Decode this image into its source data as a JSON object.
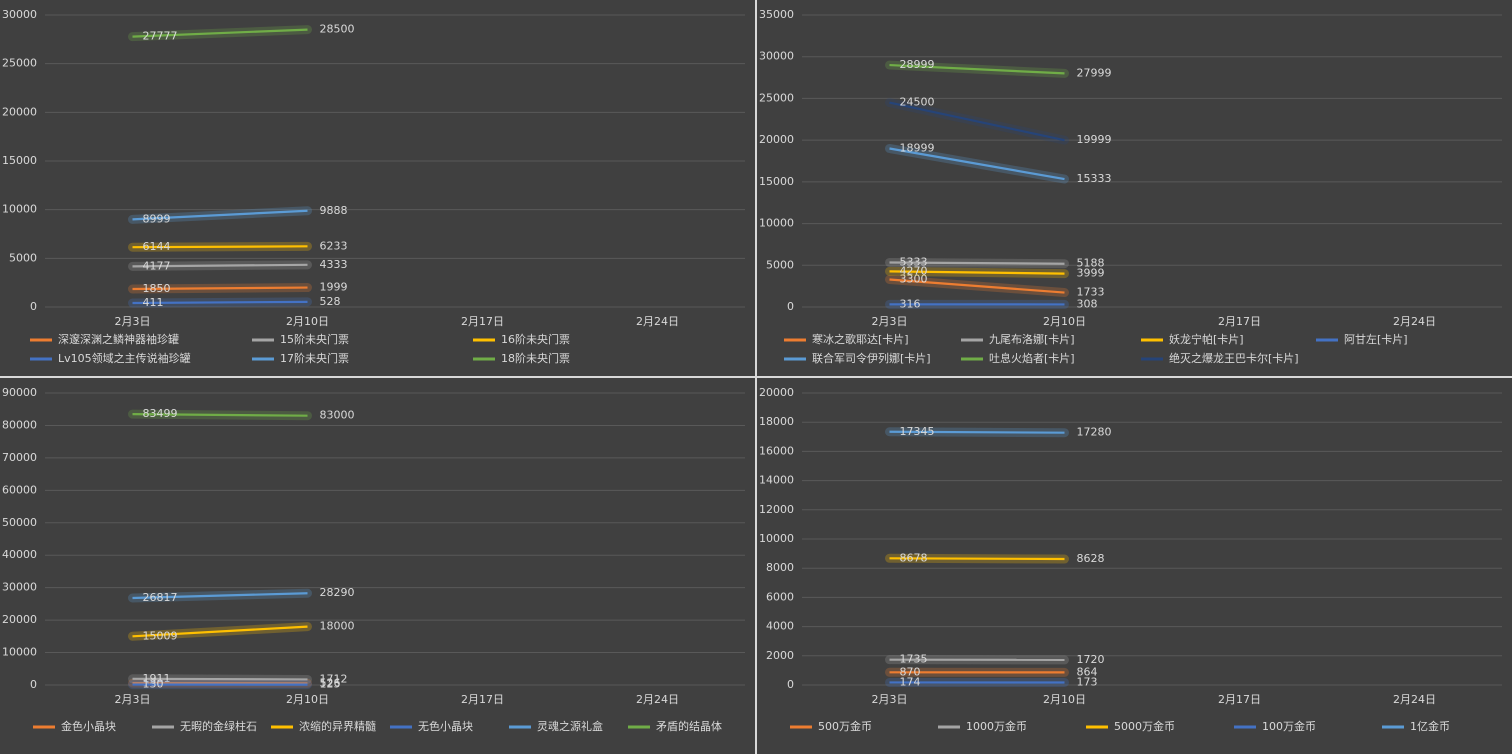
{
  "chart_data": [
    {
      "type": "line",
      "categories": [
        "2月3日",
        "2月10日",
        "2月17日",
        "2月24日"
      ],
      "ylim": [
        0,
        30000
      ],
      "yticks": [
        0,
        5000,
        10000,
        15000,
        20000,
        25000,
        30000
      ],
      "grid": true,
      "series": [
        {
          "name": "深邃深渊之鳞神器袖珍罐",
          "color": "#ed7d31",
          "values": [
            1850,
            1999,
            null,
            null
          ]
        },
        {
          "name": "15阶未央门票",
          "color": "#a5a5a5",
          "values": [
            4177,
            4333,
            null,
            null
          ]
        },
        {
          "name": "16阶未央门票",
          "color": "#ffc000",
          "values": [
            6144,
            6233,
            null,
            null
          ]
        },
        {
          "name": "Lv105领域之主传说袖珍罐",
          "color": "#4472c4",
          "values": [
            411,
            528,
            null,
            null
          ]
        },
        {
          "name": "17阶未央门票",
          "color": "#5b9bd5",
          "values": [
            8999,
            9888,
            null,
            null
          ]
        },
        {
          "name": "18阶未央门票",
          "color": "#70ad47",
          "values": [
            27777,
            28500,
            null,
            null
          ]
        }
      ]
    },
    {
      "type": "line",
      "categories": [
        "2月3日",
        "2月10日",
        "2月17日",
        "2月24日"
      ],
      "ylim": [
        0,
        35000
      ],
      "yticks": [
        0,
        5000,
        10000,
        15000,
        20000,
        25000,
        30000,
        35000
      ],
      "grid": true,
      "series": [
        {
          "name": "寒冰之歌耶达[卡片]",
          "color": "#ed7d31",
          "values": [
            3300,
            1733,
            null,
            null
          ]
        },
        {
          "name": "九尾布洛娜[卡片]",
          "color": "#a5a5a5",
          "values": [
            5333,
            5188,
            null,
            null
          ]
        },
        {
          "name": "妖龙宁帕[卡片]",
          "color": "#ffc000",
          "values": [
            4270,
            3999,
            null,
            null
          ]
        },
        {
          "name": "阿甘左[卡片]",
          "color": "#4472c4",
          "values": [
            316,
            308,
            null,
            null
          ]
        },
        {
          "name": "联合军司令伊列娜[卡片]",
          "color": "#5b9bd5",
          "values": [
            18999,
            15333,
            null,
            null
          ]
        },
        {
          "name": "吐息火焰者[卡片]",
          "color": "#70ad47",
          "values": [
            28999,
            27999,
            null,
            null
          ]
        },
        {
          "name": "绝灭之爆龙王巴卡尔[卡片]",
          "color": "#264478",
          "values": [
            24500,
            19999,
            null,
            null
          ]
        }
      ]
    },
    {
      "type": "line",
      "categories": [
        "2月3日",
        "2月10日",
        "2月17日",
        "2月24日"
      ],
      "ylim": [
        0,
        90000
      ],
      "yticks": [
        0,
        10000,
        20000,
        30000,
        40000,
        50000,
        60000,
        70000,
        80000,
        90000
      ],
      "grid": true,
      "series": [
        {
          "name": "金色小晶块",
          "color": "#ed7d31",
          "values": [
            580,
            526,
            null,
            null
          ]
        },
        {
          "name": "无暇的金绿柱石",
          "color": "#a5a5a5",
          "values": [
            1911,
            1712,
            null,
            null
          ]
        },
        {
          "name": "浓缩的异界精髓",
          "color": "#ffc000",
          "values": [
            15009,
            18000,
            null,
            null
          ]
        },
        {
          "name": "无色小晶块",
          "color": "#4472c4",
          "values": [
            130,
            125,
            null,
            null
          ]
        },
        {
          "name": "灵魂之源礼盒",
          "color": "#5b9bd5",
          "values": [
            26817,
            28290,
            null,
            null
          ]
        },
        {
          "name": "矛盾的结晶体",
          "color": "#70ad47",
          "values": [
            83499,
            83000,
            null,
            null
          ]
        }
      ]
    },
    {
      "type": "line",
      "categories": [
        "2月3日",
        "2月10日",
        "2月17日",
        "2月24日"
      ],
      "ylim": [
        0,
        20000
      ],
      "yticks": [
        0,
        2000,
        4000,
        6000,
        8000,
        10000,
        12000,
        14000,
        16000,
        18000,
        20000
      ],
      "grid": true,
      "series": [
        {
          "name": "500万金币",
          "color": "#ed7d31",
          "values": [
            870,
            864,
            null,
            null
          ]
        },
        {
          "name": "1000万金币",
          "color": "#a5a5a5",
          "values": [
            1735,
            1720,
            null,
            null
          ]
        },
        {
          "name": "5000万金币",
          "color": "#ffc000",
          "values": [
            8678,
            8628,
            null,
            null
          ]
        },
        {
          "name": "100万金币",
          "color": "#4472c4",
          "values": [
            174,
            173,
            null,
            null
          ]
        },
        {
          "name": "1亿金币",
          "color": "#5b9bd5",
          "values": [
            17345,
            17280,
            null,
            null
          ]
        }
      ]
    }
  ]
}
